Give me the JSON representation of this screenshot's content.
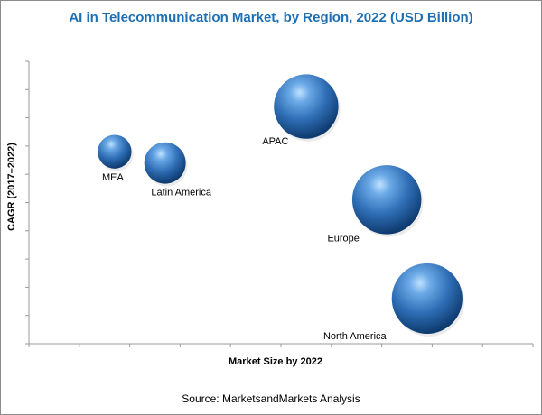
{
  "title": "AI in Telecommunication Market, by Region, 2022 (USD Billion)",
  "source": "Source: MarketsandMarkets Analysis",
  "chart_data": {
    "type": "scatter",
    "subtype": "bubble",
    "title": "AI in Telecommunication Market, by Region, 2022 (USD Billion)",
    "xlabel": "Market Size by 2022",
    "ylabel": "CAGR (2017–2022)",
    "axis_values_shown": false,
    "xlim": [
      0,
      10
    ],
    "ylim": [
      0,
      10
    ],
    "grid": false,
    "legend": "none",
    "bubble_color": "#2e6db4",
    "points": [
      {
        "label": "MEA",
        "x": 1.7,
        "y": 6.8,
        "size": 2.2
      },
      {
        "label": "Latin America",
        "x": 2.7,
        "y": 6.4,
        "size": 2.7
      },
      {
        "label": "APAC",
        "x": 5.5,
        "y": 8.4,
        "size": 4.2
      },
      {
        "label": "Europe",
        "x": 7.1,
        "y": 5.1,
        "size": 4.5
      },
      {
        "label": "North America",
        "x": 7.9,
        "y": 1.6,
        "size": 4.6
      }
    ]
  }
}
